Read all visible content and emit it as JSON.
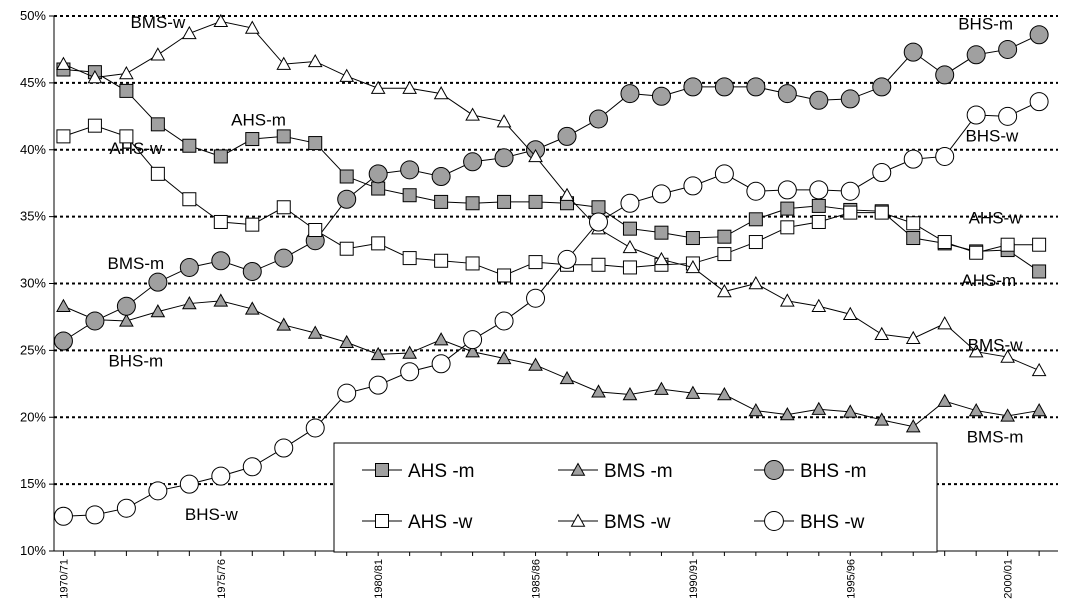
{
  "chart_data": {
    "type": "line",
    "title": "",
    "xlabel": "",
    "ylabel": "",
    "ylim": [
      10,
      50
    ],
    "y_ticks": [
      "10%",
      "15%",
      "20%",
      "25%",
      "30%",
      "35%",
      "40%",
      "45%",
      "50%"
    ],
    "x_ticks": [
      "1970/71",
      "1975/76",
      "1980/81",
      "1985/86",
      "1990/91",
      "1995/96",
      "2000/01"
    ],
    "grid": "horizontal-dotted",
    "legend_position": "bottom-center",
    "x": [
      1970,
      1971,
      1972,
      1973,
      1974,
      1975,
      1976,
      1977,
      1978,
      1979,
      1980,
      1981,
      1982,
      1983,
      1984,
      1985,
      1986,
      1987,
      1988,
      1989,
      1990,
      1991,
      1992,
      1993,
      1994,
      1995,
      1996,
      1997,
      1998,
      1999,
      2000,
      2001
    ],
    "series": [
      {
        "name": "AHS -m",
        "marker": "square",
        "fill": "#a0a0a0",
        "values": [
          46.0,
          45.8,
          44.4,
          41.9,
          40.3,
          39.5,
          40.8,
          41.0,
          40.5,
          38.0,
          37.1,
          36.6,
          36.1,
          36.0,
          36.1,
          36.1,
          36.0,
          35.7,
          34.1,
          33.8,
          33.4,
          33.5,
          34.8,
          35.6,
          35.8,
          35.5,
          35.4,
          33.4,
          33.0,
          32.4,
          32.5,
          30.9
        ]
      },
      {
        "name": "BMS -m",
        "marker": "triangle",
        "fill": "#a0a0a0",
        "values": [
          28.3,
          27.3,
          27.2,
          27.9,
          28.5,
          28.7,
          28.1,
          26.9,
          26.3,
          25.6,
          24.7,
          24.8,
          25.8,
          24.9,
          24.4,
          23.9,
          22.9,
          21.9,
          21.7,
          22.1,
          21.8,
          21.7,
          20.5,
          20.2,
          20.6,
          20.4,
          19.8,
          19.3,
          21.2,
          20.5,
          20.1,
          20.5
        ]
      },
      {
        "name": "BHS -m",
        "marker": "circle",
        "fill": "#a0a0a0",
        "values": [
          25.7,
          27.2,
          28.3,
          30.1,
          31.2,
          31.7,
          30.9,
          31.9,
          33.2,
          36.3,
          38.2,
          38.5,
          38.0,
          39.1,
          39.4,
          40.0,
          41.0,
          42.3,
          44.2,
          44.0,
          44.7,
          44.7,
          44.7,
          44.2,
          43.7,
          43.8,
          44.7,
          47.3,
          45.6,
          47.1,
          47.5,
          48.6
        ]
      },
      {
        "name": "AHS -w",
        "marker": "square",
        "fill": "#ffffff",
        "values": [
          41.0,
          41.8,
          41.0,
          38.2,
          36.3,
          34.6,
          34.4,
          35.7,
          34.0,
          32.6,
          33.0,
          31.9,
          31.7,
          31.5,
          30.6,
          31.6,
          31.4,
          31.4,
          31.2,
          31.4,
          31.5,
          32.2,
          33.1,
          34.2,
          34.6,
          35.3,
          35.3,
          34.5,
          33.1,
          32.3,
          32.9,
          32.9
        ]
      },
      {
        "name": "BMS -w",
        "marker": "triangle",
        "fill": "#ffffff",
        "values": [
          46.4,
          45.4,
          45.7,
          47.1,
          48.7,
          49.6,
          49.1,
          46.4,
          46.6,
          45.5,
          44.6,
          44.6,
          44.2,
          42.6,
          42.1,
          39.5,
          36.6,
          34.1,
          32.7,
          31.8,
          31.2,
          29.4,
          30.0,
          28.7,
          28.3,
          27.7,
          26.2,
          25.9,
          27.0,
          24.9,
          24.5,
          23.5
        ]
      },
      {
        "name": "BHS -w",
        "marker": "circle",
        "fill": "#ffffff",
        "values": [
          12.6,
          12.7,
          13.2,
          14.5,
          15.0,
          15.6,
          16.3,
          17.7,
          19.2,
          21.8,
          22.4,
          23.4,
          24.0,
          25.8,
          27.2,
          28.9,
          31.8,
          34.6,
          36.0,
          36.7,
          37.3,
          38.2,
          36.9,
          37.0,
          37.0,
          36.9,
          38.3,
          39.3,
          39.5,
          42.6,
          42.5,
          43.6
        ]
      }
    ],
    "annotations": [
      {
        "text": "BMS-w",
        "x": 1973.0,
        "y": 49.1
      },
      {
        "text": "AHS-m",
        "x": 1976.2,
        "y": 41.8
      },
      {
        "text": "AHS-w",
        "x": 1972.3,
        "y": 39.7
      },
      {
        "text": "BMS-m",
        "x": 1972.3,
        "y": 31.1
      },
      {
        "text": "BHS-m",
        "x": 1972.3,
        "y": 23.8
      },
      {
        "text": "BHS-w",
        "x": 1974.7,
        "y": 12.3
      },
      {
        "text": "BHS-m",
        "x": 1999.3,
        "y": 49.0
      },
      {
        "text": "BHS-w",
        "x": 1999.5,
        "y": 40.6
      },
      {
        "text": "AHS-w",
        "x": 1999.6,
        "y": 34.5
      },
      {
        "text": "AHS-m",
        "x": 1999.4,
        "y": 29.8
      },
      {
        "text": "BMS-w",
        "x": 1999.6,
        "y": 25.0
      },
      {
        "text": "BMS-m",
        "x": 1999.6,
        "y": 18.1
      }
    ]
  }
}
